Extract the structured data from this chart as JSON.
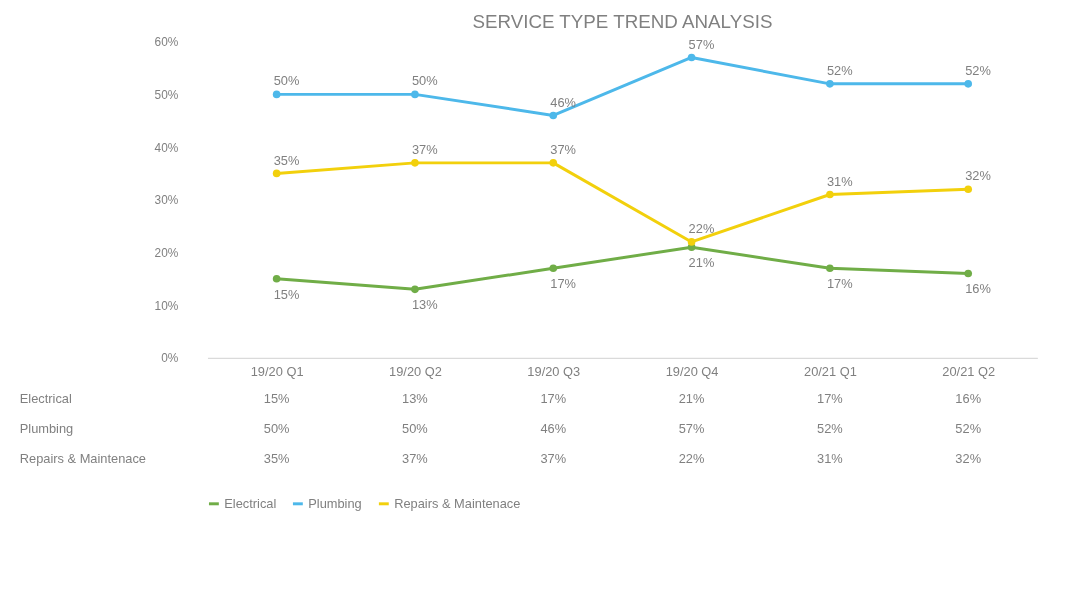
{
  "chart_data": {
    "type": "line",
    "title": "SERVICE TYPE TREND ANALYSIS",
    "categories": [
      "19/20 Q1",
      "19/20 Q2",
      "19/20 Q3",
      "19/20 Q4",
      "20/21 Q1",
      "20/21 Q2"
    ],
    "series": [
      {
        "name": "Electrical",
        "color": "#70ad47",
        "values": [
          15,
          13,
          17,
          21,
          17,
          16
        ],
        "value_labels": [
          "15%",
          "13%",
          "17%",
          "21%",
          "17%",
          "16%"
        ]
      },
      {
        "name": "Plumbing",
        "color": "#4db8ea",
        "values": [
          50,
          50,
          46,
          57,
          52,
          52
        ],
        "value_labels": [
          "50%",
          "50%",
          "46%",
          "57%",
          "52%",
          "52%"
        ]
      },
      {
        "name": "Repairs & Maintenace",
        "color": "#f2d00c",
        "values": [
          35,
          37,
          37,
          22,
          31,
          32
        ],
        "value_labels": [
          "35%",
          "37%",
          "37%",
          "22%",
          "31%",
          "32%"
        ]
      }
    ],
    "ylim": [
      0,
      60
    ],
    "yticks": [
      {
        "value": 0,
        "label": "0%"
      },
      {
        "value": 10,
        "label": "10%"
      },
      {
        "value": 20,
        "label": "20%"
      },
      {
        "value": 30,
        "label": "30%"
      },
      {
        "value": 40,
        "label": "40%"
      },
      {
        "value": 50,
        "label": "50%"
      },
      {
        "value": 60,
        "label": "60%"
      }
    ],
    "grid": false,
    "legend": "bottom",
    "marker": "circle",
    "line_style": "solid"
  }
}
